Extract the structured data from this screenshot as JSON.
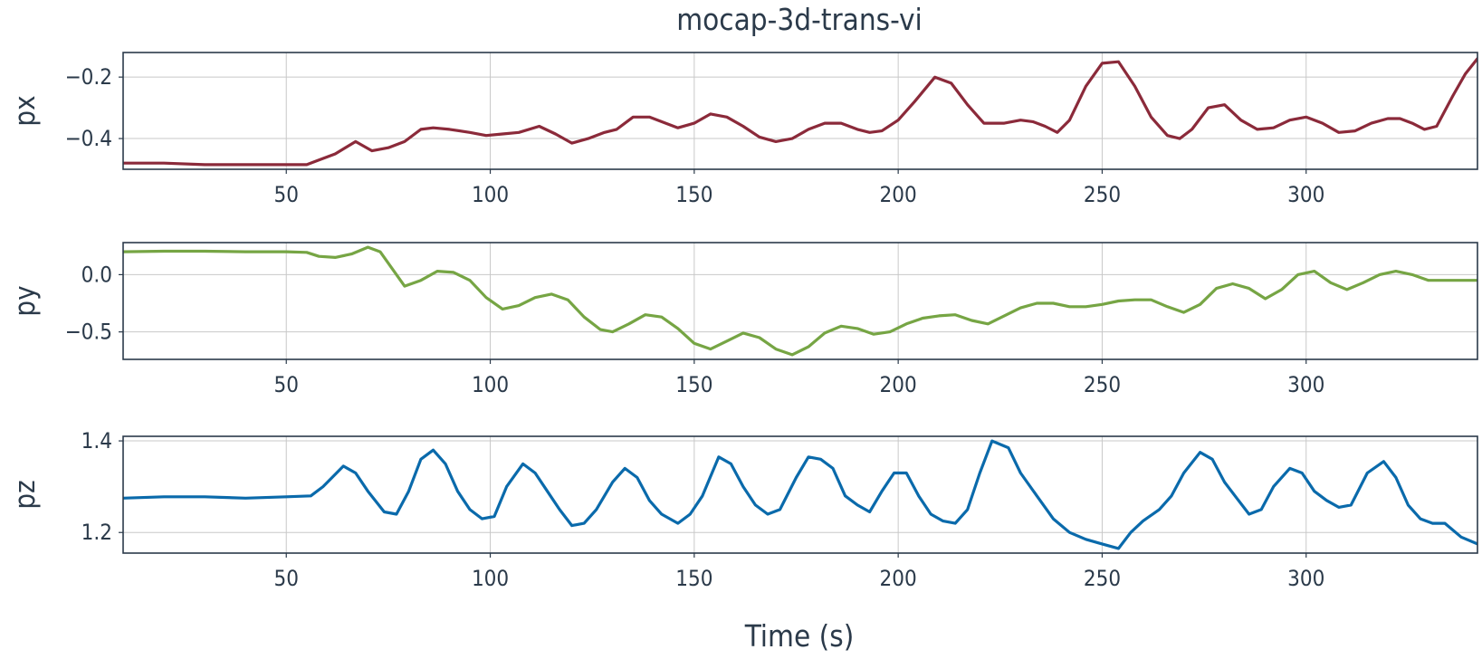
{
  "chart_data": {
    "type": "line",
    "title": "mocap-3d-trans-vi",
    "xlabel": "Time (s)",
    "xlim": [
      10,
      342
    ],
    "xticks": [
      50,
      100,
      150,
      200,
      250,
      300
    ],
    "grid": true,
    "panels": [
      {
        "ylabel": "px",
        "color": "#8b2a3a",
        "ylim": [
          -0.5,
          -0.12
        ],
        "yticks": [
          -0.4,
          -0.2
        ],
        "ytick_labels": [
          "−0.4",
          "−0.2"
        ],
        "x": [
          10,
          20,
          30,
          40,
          50,
          55,
          58,
          62,
          67,
          71,
          75,
          79,
          83,
          86,
          90,
          95,
          99,
          103,
          107,
          112,
          116,
          120,
          124,
          128,
          131,
          135,
          139,
          143,
          146,
          150,
          154,
          158,
          162,
          166,
          170,
          174,
          178,
          182,
          186,
          190,
          193,
          196,
          200,
          204,
          209,
          213,
          217,
          221,
          226,
          230,
          233,
          236,
          239,
          242,
          246,
          250,
          254,
          258,
          262,
          266,
          269,
          272,
          276,
          280,
          284,
          288,
          292,
          296,
          300,
          304,
          308,
          312,
          316,
          320,
          323,
          326,
          329,
          332,
          336,
          339,
          342
        ],
        "values": [
          -0.48,
          -0.48,
          -0.485,
          -0.485,
          -0.485,
          -0.485,
          -0.47,
          -0.45,
          -0.41,
          -0.44,
          -0.43,
          -0.41,
          -0.37,
          -0.365,
          -0.37,
          -0.38,
          -0.39,
          -0.385,
          -0.38,
          -0.36,
          -0.385,
          -0.415,
          -0.4,
          -0.38,
          -0.37,
          -0.33,
          -0.33,
          -0.35,
          -0.365,
          -0.35,
          -0.32,
          -0.33,
          -0.36,
          -0.395,
          -0.41,
          -0.4,
          -0.37,
          -0.35,
          -0.35,
          -0.37,
          -0.38,
          -0.375,
          -0.34,
          -0.28,
          -0.2,
          -0.22,
          -0.29,
          -0.35,
          -0.35,
          -0.34,
          -0.345,
          -0.36,
          -0.38,
          -0.34,
          -0.23,
          -0.155,
          -0.15,
          -0.23,
          -0.33,
          -0.39,
          -0.4,
          -0.37,
          -0.3,
          -0.29,
          -0.34,
          -0.37,
          -0.365,
          -0.34,
          -0.33,
          -0.35,
          -0.38,
          -0.375,
          -0.35,
          -0.335,
          -0.335,
          -0.35,
          -0.37,
          -0.36,
          -0.26,
          -0.19,
          -0.14
        ]
      },
      {
        "ylabel": "py",
        "color": "#76a544",
        "ylim": [
          -0.74,
          0.28
        ],
        "yticks": [
          -0.5,
          0.0
        ],
        "ytick_labels": [
          "−0.5",
          "0.0"
        ],
        "x": [
          10,
          20,
          30,
          40,
          50,
          55,
          58,
          62,
          66,
          70,
          73,
          76,
          79,
          83,
          87,
          91,
          95,
          99,
          103,
          107,
          111,
          115,
          119,
          123,
          127,
          130,
          134,
          138,
          142,
          146,
          150,
          154,
          158,
          162,
          166,
          170,
          174,
          178,
          182,
          186,
          190,
          194,
          198,
          202,
          206,
          210,
          214,
          218,
          222,
          226,
          230,
          234,
          238,
          242,
          246,
          250,
          254,
          258,
          262,
          266,
          270,
          274,
          278,
          282,
          286,
          290,
          294,
          298,
          302,
          306,
          310,
          314,
          318,
          322,
          326,
          330,
          334,
          338,
          342
        ],
        "values": [
          0.2,
          0.205,
          0.205,
          0.2,
          0.2,
          0.195,
          0.16,
          0.15,
          0.18,
          0.24,
          0.2,
          0.05,
          -0.1,
          -0.05,
          0.03,
          0.02,
          -0.05,
          -0.2,
          -0.3,
          -0.27,
          -0.2,
          -0.17,
          -0.22,
          -0.37,
          -0.48,
          -0.5,
          -0.43,
          -0.35,
          -0.37,
          -0.47,
          -0.6,
          -0.65,
          -0.58,
          -0.51,
          -0.55,
          -0.65,
          -0.7,
          -0.63,
          -0.51,
          -0.45,
          -0.47,
          -0.52,
          -0.5,
          -0.43,
          -0.38,
          -0.36,
          -0.35,
          -0.4,
          -0.43,
          -0.36,
          -0.29,
          -0.25,
          -0.25,
          -0.28,
          -0.28,
          -0.26,
          -0.23,
          -0.22,
          -0.22,
          -0.28,
          -0.33,
          -0.26,
          -0.12,
          -0.08,
          -0.12,
          -0.21,
          -0.13,
          0.0,
          0.03,
          -0.07,
          -0.13,
          -0.07,
          0.0,
          0.03,
          0.0,
          -0.05,
          -0.05,
          -0.05,
          -0.05
        ]
      },
      {
        "ylabel": "pz",
        "color": "#0a6aab",
        "ylim": [
          1.155,
          1.41
        ],
        "yticks": [
          1.2,
          1.4
        ],
        "ytick_labels": [
          "1.2",
          "1.4"
        ],
        "x": [
          10,
          20,
          30,
          40,
          50,
          56,
          59,
          64,
          67,
          70,
          74,
          77,
          80,
          83,
          86,
          89,
          92,
          95,
          98,
          101,
          104,
          108,
          111,
          114,
          117,
          120,
          123,
          126,
          130,
          133,
          136,
          139,
          142,
          146,
          149,
          152,
          156,
          159,
          162,
          165,
          168,
          171,
          175,
          178,
          181,
          184,
          187,
          190,
          193,
          196,
          199,
          202,
          205,
          208,
          211,
          214,
          217,
          220,
          223,
          227,
          230,
          234,
          238,
          242,
          246,
          250,
          254,
          257,
          260,
          264,
          267,
          270,
          274,
          277,
          280,
          283,
          286,
          289,
          292,
          296,
          299,
          302,
          305,
          308,
          311,
          315,
          319,
          322,
          325,
          328,
          331,
          334,
          338,
          342
        ],
        "values": [
          1.275,
          1.278,
          1.278,
          1.275,
          1.278,
          1.28,
          1.3,
          1.345,
          1.33,
          1.29,
          1.245,
          1.24,
          1.29,
          1.36,
          1.38,
          1.35,
          1.29,
          1.25,
          1.23,
          1.235,
          1.3,
          1.35,
          1.33,
          1.29,
          1.25,
          1.215,
          1.22,
          1.25,
          1.31,
          1.34,
          1.32,
          1.27,
          1.24,
          1.22,
          1.24,
          1.28,
          1.365,
          1.35,
          1.3,
          1.26,
          1.24,
          1.25,
          1.32,
          1.365,
          1.36,
          1.34,
          1.28,
          1.26,
          1.245,
          1.29,
          1.33,
          1.33,
          1.28,
          1.24,
          1.225,
          1.22,
          1.25,
          1.33,
          1.4,
          1.385,
          1.33,
          1.28,
          1.23,
          1.2,
          1.185,
          1.175,
          1.165,
          1.2,
          1.225,
          1.25,
          1.28,
          1.33,
          1.375,
          1.36,
          1.31,
          1.275,
          1.24,
          1.25,
          1.3,
          1.34,
          1.33,
          1.29,
          1.27,
          1.255,
          1.26,
          1.33,
          1.355,
          1.32,
          1.26,
          1.23,
          1.22,
          1.22,
          1.19,
          1.175
        ]
      }
    ]
  }
}
